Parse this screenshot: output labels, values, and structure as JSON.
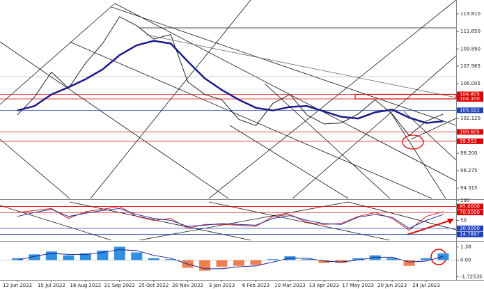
{
  "chart_data": [
    {
      "type": "line",
      "ylim": [
        93.15,
        115.37
      ],
      "yticks": [
        {
          "value": 113.81,
          "label": "113.810"
        },
        {
          "value": 111.85,
          "label": "111.850"
        },
        {
          "value": 109.89,
          "label": "109.890"
        },
        107.965,
        106.005,
        {
          "value": 102.12,
          "label": "102.120"
        },
        {
          "value": 98.2,
          "label": "98.200"
        },
        96.275,
        94.315
      ],
      "levels": [
        {
          "value": 104.805,
          "color": "#e00000"
        },
        {
          "value": 104.3,
          "label": "104.300",
          "color": "#e00000"
        },
        {
          "value": 103.022,
          "color": "#1f3fbf"
        },
        {
          "value": 100.605,
          "color": "#e00000"
        },
        {
          "value": 99.553,
          "color": "#e00000"
        }
      ],
      "series": [
        {
          "color": "#222222",
          "values": [
            102.5,
            104.5,
            107.3,
            105.5,
            108.3,
            110.5,
            113.5,
            112.5,
            111.0,
            111.5,
            106.2,
            104.8,
            104.2,
            102.0,
            101.3,
            103.8,
            104.8,
            102.5,
            101.5,
            101.6,
            102.6,
            104.2,
            102.6,
            100.2,
            101.8,
            102.6
          ]
        },
        {
          "color": "#1a1a8c",
          "values": [
            103.0,
            103.5,
            104.8,
            105.6,
            106.5,
            107.6,
            109.2,
            110.3,
            110.8,
            110.5,
            108.5,
            106.6,
            105.3,
            104.2,
            103.3,
            103.0,
            103.4,
            103.5,
            102.9,
            102.3,
            102.1,
            102.8,
            103.1,
            102.2,
            101.6,
            101.8
          ]
        }
      ]
    },
    {
      "type": "line",
      "ylim": [
        0,
        100
      ],
      "yticks": [
        100,
        50
      ],
      "levels": [
        {
          "value": 85,
          "label": "85.0000",
          "color": "#e00000"
        },
        {
          "value": 70,
          "label": "70.0000",
          "color": "#e00000"
        },
        {
          "value": 30,
          "label": "30.0000",
          "color": "#1f3fbf"
        },
        {
          "value": 14.7897,
          "color": "#1f3fbf"
        }
      ],
      "series": [
        {
          "color": "#d02020",
          "values": [
            70,
            75,
            80,
            55,
            72,
            78,
            85,
            60,
            50,
            55,
            30,
            40,
            40,
            38,
            35,
            60,
            65,
            45,
            40,
            42,
            60,
            70,
            55,
            25,
            60,
            72
          ]
        },
        {
          "color": "#2030a0",
          "values": [
            60,
            70,
            78,
            60,
            68,
            75,
            80,
            65,
            55,
            50,
            35,
            38,
            42,
            40,
            38,
            55,
            62,
            50,
            42,
            40,
            58,
            65,
            58,
            30,
            50,
            65
          ]
        }
      ]
    },
    {
      "type": "bar",
      "ylim": [
        -2.07,
        1.86
      ],
      "yticks": [
        1.38,
        {
          "value": 0,
          "label": "0.00"
        },
        -1.72535
      ],
      "categories": [
        "13 Jun 2022",
        null,
        "15 Jul 2022",
        null,
        "18 Aug 2022",
        null,
        "21 Sep 2022",
        null,
        "25 Oct 2022",
        null,
        "28 Nov 2022",
        null,
        "3 Jan 2023",
        null,
        "6 Feb 2023",
        null,
        "10 Mar 2023",
        null,
        "13 Apr 2023",
        null,
        "17 May 2023",
        null,
        "20 Jun 2023",
        null,
        "24 Jul 2023",
        null
      ],
      "series": [
        {
          "type": "bar",
          "color": "#2f8fe0",
          "negative_color": "#f08050",
          "values": [
            0.2,
            0.6,
            0.9,
            0.5,
            0.7,
            1.0,
            1.4,
            0.8,
            0.2,
            0.1,
            -0.8,
            -1.1,
            -0.7,
            -0.6,
            -0.5,
            0.1,
            0.4,
            0.1,
            -0.3,
            -0.3,
            0.2,
            0.5,
            0.2,
            -0.6,
            0.2,
            0.7
          ]
        },
        {
          "type": "line",
          "color": "#1a1a8c",
          "values": [
            0,
            0.4,
            0.7,
            0.6,
            0.6,
            0.8,
            1.1,
            1.0,
            0.5,
            0.2,
            -0.4,
            -0.9,
            -0.9,
            -0.7,
            -0.6,
            -0.2,
            0.2,
            0.2,
            -0.1,
            -0.2,
            0,
            0.3,
            0.3,
            -0.2,
            -0.1,
            0.4
          ]
        }
      ]
    }
  ]
}
